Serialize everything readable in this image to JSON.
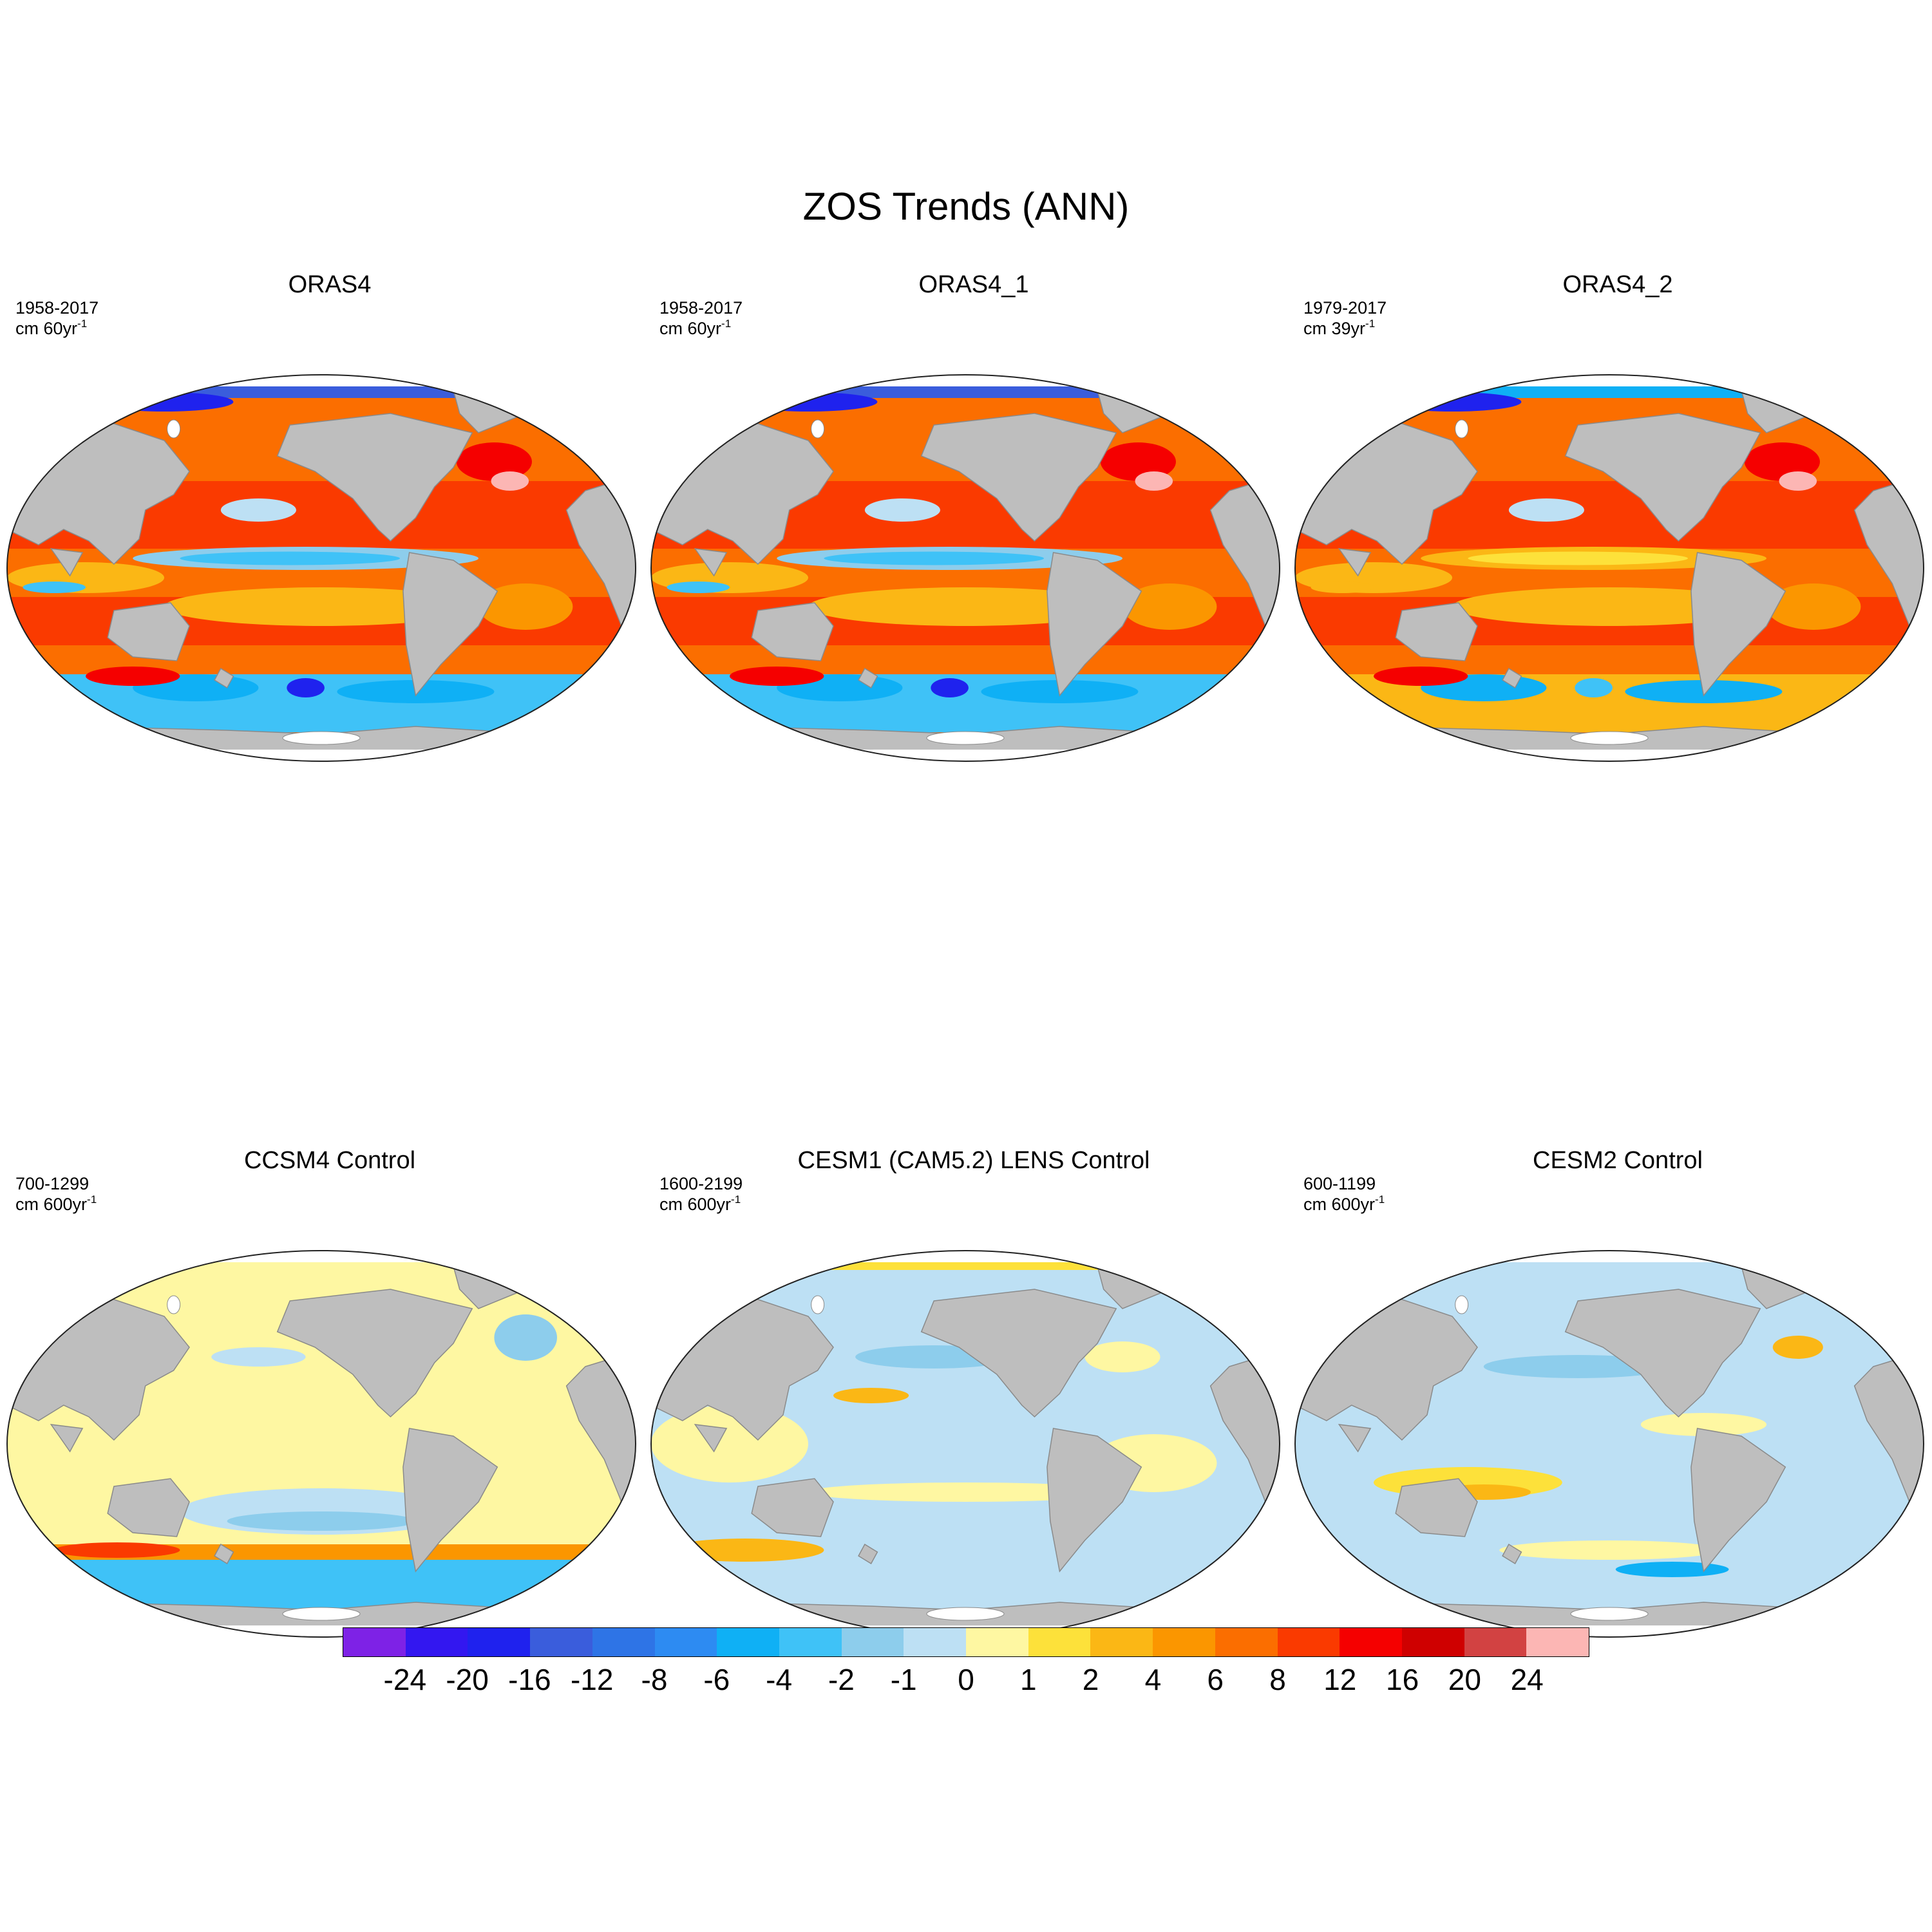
{
  "figure": {
    "title": "ZOS Trends (ANN)"
  },
  "panels": [
    {
      "name": "ORAS4",
      "period": "1958-2017",
      "units_prefix": "cm 60yr",
      "units_exp": "-1"
    },
    {
      "name": "ORAS4_1",
      "period": "1958-2017",
      "units_prefix": "cm 60yr",
      "units_exp": "-1"
    },
    {
      "name": "ORAS4_2",
      "period": "1979-2017",
      "units_prefix": "cm 39yr",
      "units_exp": "-1"
    },
    {
      "name": "CCSM4 Control",
      "period": "700-1299",
      "units_prefix": "cm 600yr",
      "units_exp": "-1"
    },
    {
      "name": "CESM1 (CAM5.2) LENS Control",
      "period": "1600-2199",
      "units_prefix": "cm 600yr",
      "units_exp": "-1"
    },
    {
      "name": "CESM2 Control",
      "period": "600-1199",
      "units_prefix": "cm 600yr",
      "units_exp": "-1"
    }
  ],
  "colorbar": {
    "labels": [
      "-24",
      "-20",
      "-16",
      "-12",
      "-8",
      "-6",
      "-4",
      "-2",
      "-1",
      "0",
      "1",
      "2",
      "4",
      "6",
      "8",
      "12",
      "16",
      "20",
      "24"
    ],
    "colors": [
      "#7e22e6",
      "#3317f0",
      "#1f22ee",
      "#3a5ddc",
      "#2e74e6",
      "#2d8bf2",
      "#0fb0f5",
      "#3fc2f7",
      "#8dcdec",
      "#bde0f4",
      "#fef7a2",
      "#fde13a",
      "#fbb715",
      "#fb9600",
      "#fb6e00",
      "#fa3a00",
      "#f50000",
      "#cf0000",
      "#d24242",
      "#fcb6b4"
    ]
  },
  "colors": {
    "land": "#bebebe",
    "sea_ice": "#ffffff",
    "coastline": "#8a8a8a"
  }
}
